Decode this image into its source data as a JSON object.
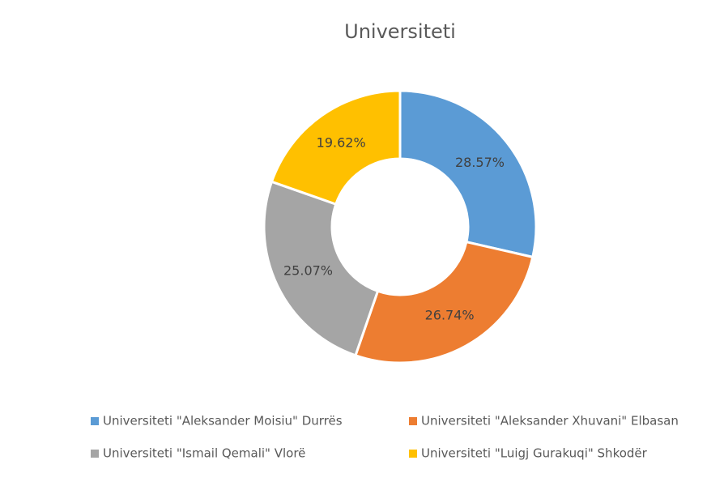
{
  "chart_data": {
    "type": "donut",
    "title": "Universiteti",
    "categories": [
      "Universiteti \"Aleksander Moisiu\" Durrës",
      "Universiteti \"Aleksander Xhuvani\" Elbasan",
      "Universiteti \"Ismail Qemali\" Vlorë",
      "Universiteti \"Luigj Gurakuqi\" Shkodër"
    ],
    "values": [
      28.57,
      26.74,
      25.07,
      19.62
    ],
    "value_labels": [
      "28.57%",
      "26.74%",
      "25.07%",
      "19.62%"
    ],
    "colors": [
      "#5b9bd5",
      "#ed7d31",
      "#a5a5a5",
      "#ffc000"
    ],
    "legend": "bottom"
  }
}
